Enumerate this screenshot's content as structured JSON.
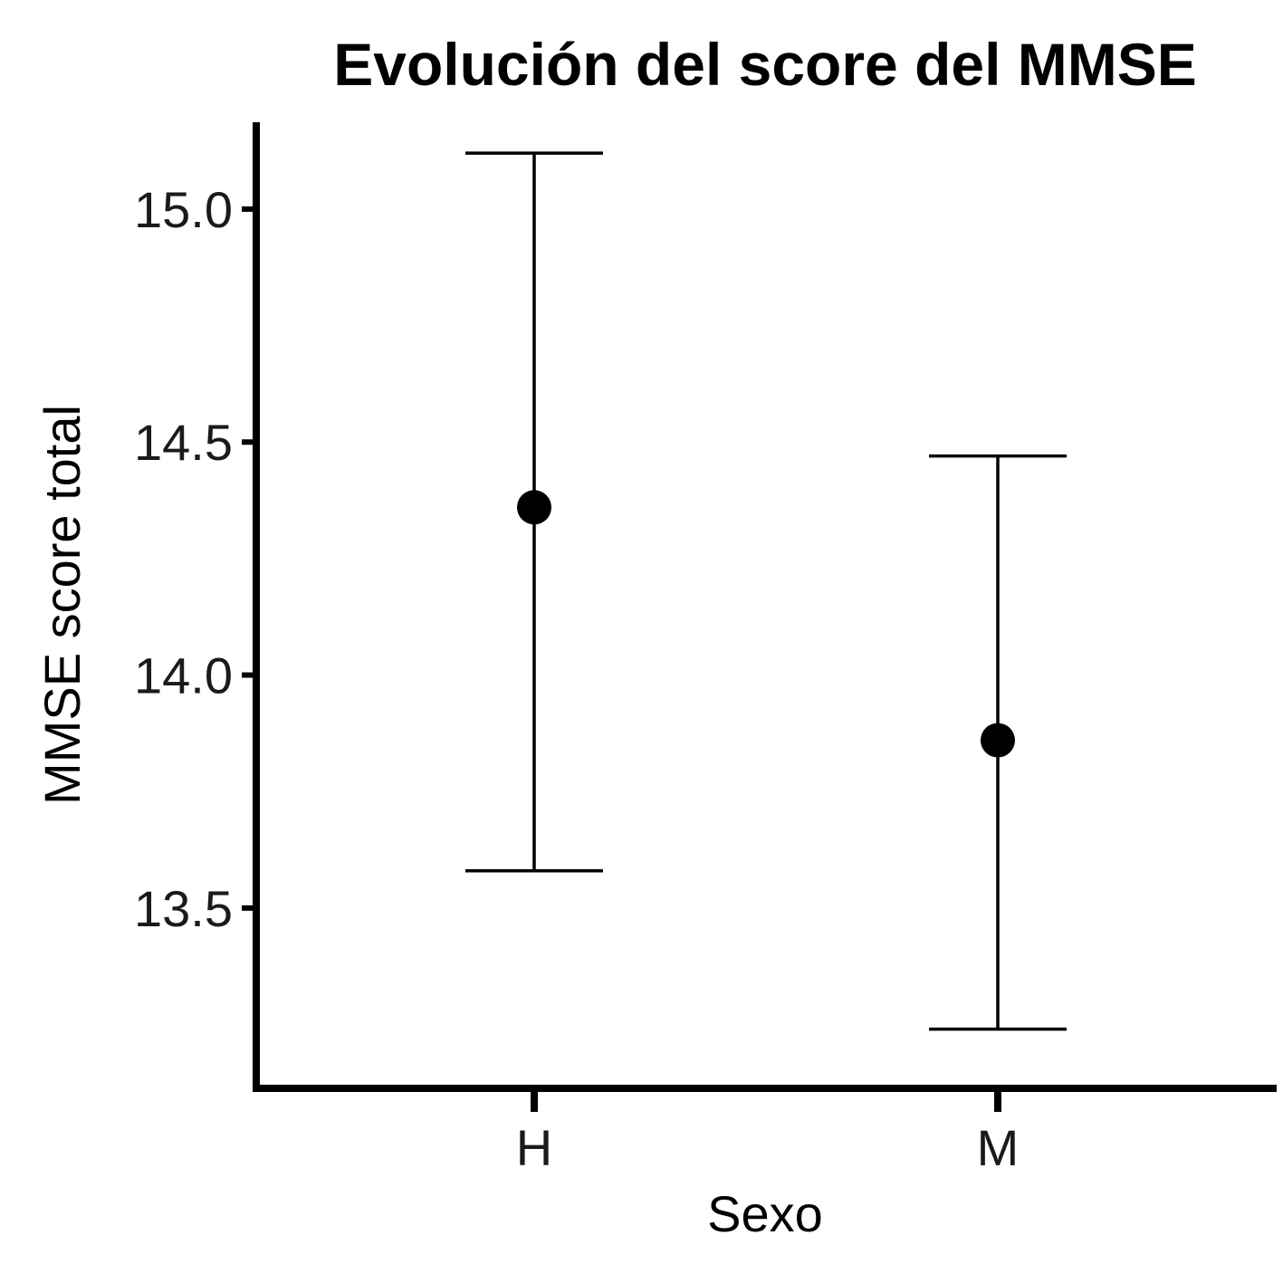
{
  "chart_data": {
    "type": "errorbar",
    "title": "Evolución del score del MMSE",
    "xlabel": "Sexo",
    "ylabel": "MMSE score total",
    "categories": [
      "H",
      "M"
    ],
    "values": [
      14.36,
      13.86
    ],
    "lower": [
      13.58,
      13.24
    ],
    "upper": [
      15.12,
      14.47
    ],
    "ylim": [
      13.15,
      15.2
    ],
    "yticks": [
      13.5,
      14.0,
      14.5,
      15.0
    ],
    "ytick_labels": [
      "13.5",
      "14.0",
      "14.5",
      "15.0"
    ],
    "grid": false,
    "legend": "none",
    "color": "#000000"
  }
}
